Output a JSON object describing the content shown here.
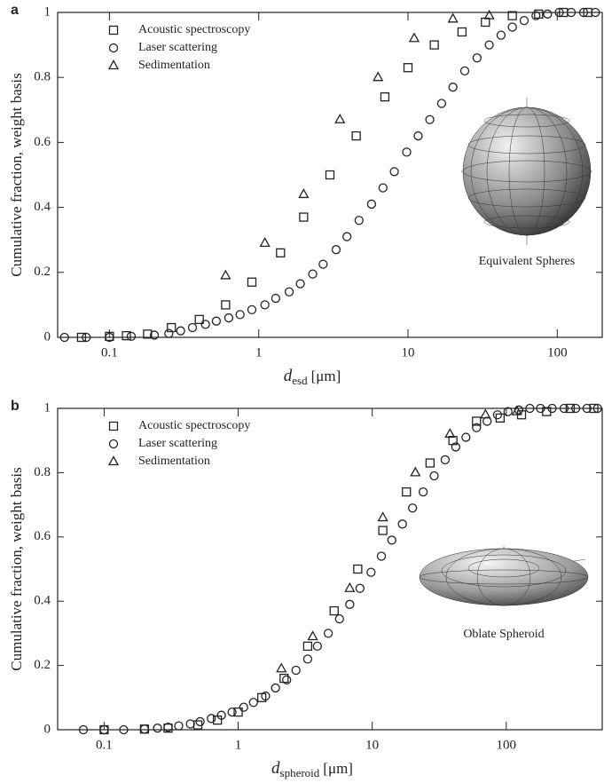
{
  "chart_data": [
    {
      "type": "scatter",
      "panel_label": "a",
      "ylabel": "Cumulative fraction, weight basis",
      "xlabel": "d",
      "xlabel_sub": "esd",
      "xlabel_unit": "[μm]",
      "annotation": "Equivalent Spheres",
      "xscale": "log",
      "xlim": [
        0.045,
        200
      ],
      "xticks": [
        0.1,
        1,
        10,
        100
      ],
      "ylim": [
        0,
        1
      ],
      "yticks": [
        0,
        0.2,
        0.4,
        0.6,
        0.8,
        1
      ],
      "legend": "upper left",
      "series": [
        {
          "name": "Acoustic spectroscopy",
          "marker": "square",
          "color": "#222222",
          "x": [
            0.065,
            0.1,
            0.13,
            0.18,
            0.26,
            0.4,
            0.6,
            0.9,
            1.4,
            2.0,
            3.0,
            4.5,
            7,
            10,
            15,
            23,
            33,
            50,
            75,
            110,
            160
          ],
          "values": [
            0,
            0.003,
            0.005,
            0.01,
            0.03,
            0.055,
            0.1,
            0.17,
            0.26,
            0.37,
            0.5,
            0.62,
            0.74,
            0.83,
            0.9,
            0.94,
            0.97,
            0.99,
            0.995,
            1,
            1
          ]
        },
        {
          "name": "Laser scattering",
          "marker": "circle",
          "color": "#222222",
          "x": [
            0.05,
            0.07,
            0.1,
            0.14,
            0.2,
            0.25,
            0.3,
            0.36,
            0.44,
            0.52,
            0.63,
            0.75,
            0.9,
            1.1,
            1.3,
            1.6,
            1.9,
            2.3,
            2.7,
            3.3,
            3.9,
            4.7,
            5.7,
            6.8,
            8.1,
            9.8,
            11.7,
            14,
            16.8,
            20,
            24,
            29,
            35,
            42,
            50,
            60,
            72,
            86,
            103,
            124,
            150,
            180
          ],
          "values": [
            0,
            0,
            0,
            0.003,
            0.007,
            0.012,
            0.02,
            0.03,
            0.04,
            0.05,
            0.06,
            0.07,
            0.085,
            0.1,
            0.12,
            0.14,
            0.165,
            0.195,
            0.225,
            0.27,
            0.31,
            0.36,
            0.41,
            0.46,
            0.51,
            0.57,
            0.62,
            0.67,
            0.72,
            0.77,
            0.82,
            0.86,
            0.9,
            0.93,
            0.955,
            0.975,
            0.99,
            0.995,
            1,
            1,
            1,
            1
          ]
        },
        {
          "name": "Sedimentation",
          "marker": "triangle",
          "color": "#222222",
          "x": [
            0.6,
            1.1,
            2.0,
            3.5,
            6.3,
            11,
            20,
            35
          ],
          "values": [
            0.19,
            0.29,
            0.44,
            0.67,
            0.8,
            0.92,
            0.98,
            0.99
          ]
        }
      ]
    },
    {
      "type": "scatter",
      "panel_label": "b",
      "ylabel": "Cumulative fraction, weight basis",
      "xlabel": "d",
      "xlabel_sub": "spheroid",
      "xlabel_unit": "[μm]",
      "annotation": "Oblate Spheroid",
      "xscale": "log",
      "xlim": [
        0.045,
        520
      ],
      "xticks": [
        0.1,
        1,
        10,
        100
      ],
      "ylim": [
        0,
        1
      ],
      "yticks": [
        0,
        0.2,
        0.4,
        0.6,
        0.8,
        1
      ],
      "legend": "upper left",
      "series": [
        {
          "name": "Acoustic spectroscopy",
          "marker": "square",
          "color": "#222222",
          "x": [
            0.1,
            0.2,
            0.3,
            0.5,
            0.7,
            1.0,
            1.5,
            2.2,
            3.3,
            5.2,
            7.8,
            12,
            18,
            27,
            40,
            60,
            90,
            130,
            200,
            300,
            450
          ],
          "values": [
            0,
            0.002,
            0.005,
            0.015,
            0.03,
            0.055,
            0.1,
            0.16,
            0.26,
            0.37,
            0.5,
            0.62,
            0.74,
            0.83,
            0.9,
            0.96,
            0.97,
            0.98,
            0.99,
            1,
            1
          ]
        },
        {
          "name": "Laser scattering",
          "marker": "circle",
          "color": "#222222",
          "x": [
            0.07,
            0.1,
            0.14,
            0.2,
            0.25,
            0.3,
            0.36,
            0.44,
            0.52,
            0.63,
            0.75,
            0.9,
            1.1,
            1.3,
            1.6,
            1.9,
            2.3,
            2.7,
            3.3,
            3.9,
            4.7,
            5.7,
            6.8,
            8.1,
            9.8,
            11.7,
            14,
            16.8,
            20,
            24,
            29,
            35,
            42,
            50,
            60,
            72,
            86,
            103,
            124,
            150,
            180,
            220,
            270,
            330,
            400,
            480
          ],
          "values": [
            0,
            0,
            0,
            0.002,
            0.005,
            0.008,
            0.012,
            0.018,
            0.025,
            0.035,
            0.045,
            0.055,
            0.07,
            0.085,
            0.105,
            0.13,
            0.155,
            0.185,
            0.22,
            0.26,
            0.3,
            0.345,
            0.39,
            0.44,
            0.49,
            0.54,
            0.59,
            0.64,
            0.69,
            0.74,
            0.79,
            0.84,
            0.88,
            0.91,
            0.94,
            0.96,
            0.98,
            0.99,
            0.995,
            1,
            1,
            1,
            1,
            1,
            1,
            1
          ]
        },
        {
          "name": "Sedimentation",
          "marker": "triangle",
          "color": "#222222",
          "x": [
            2.1,
            3.6,
            6.8,
            12,
            21,
            38,
            70,
            120
          ],
          "values": [
            0.19,
            0.29,
            0.44,
            0.66,
            0.8,
            0.92,
            0.98,
            0.99
          ]
        }
      ]
    }
  ]
}
